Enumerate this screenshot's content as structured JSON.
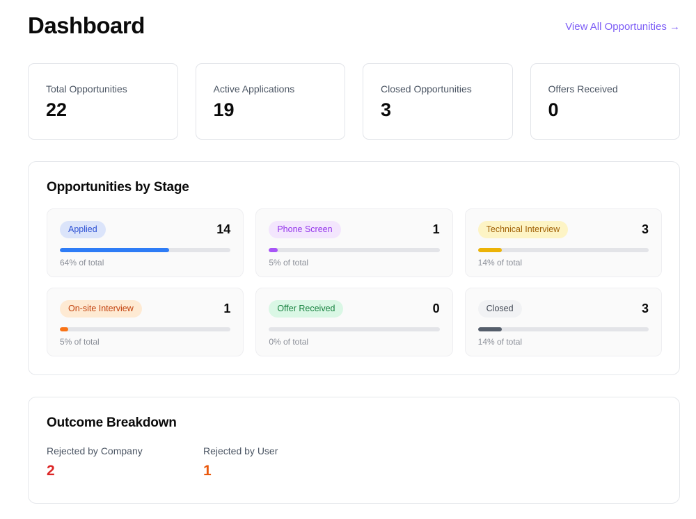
{
  "header": {
    "title": "Dashboard",
    "link_label": "View All Opportunities →",
    "link_color": "#7c5cf6"
  },
  "stats": {
    "items": [
      {
        "label": "Total Opportunities",
        "value": "22"
      },
      {
        "label": "Active Applications",
        "value": "19"
      },
      {
        "label": "Closed Opportunities",
        "value": "3"
      },
      {
        "label": "Offers Received",
        "value": "0"
      }
    ]
  },
  "stages": {
    "title": "Opportunities by Stage",
    "items": [
      {
        "label": "Applied",
        "value": "14",
        "percent": 64,
        "percent_label": "64% of total",
        "badge_bg": "#dbe4fa",
        "badge_text": "#2f52d4",
        "bar_color": "#2e7cf6"
      },
      {
        "label": "Phone Screen",
        "value": "1",
        "percent": 5,
        "percent_label": "5% of total",
        "badge_bg": "#f3e6fd",
        "badge_text": "#9333ea",
        "bar_color": "#a855f7"
      },
      {
        "label": "Technical Interview",
        "value": "3",
        "percent": 14,
        "percent_label": "14% of total",
        "badge_bg": "#fdf4c5",
        "badge_text": "#a16207",
        "bar_color": "#ecb307"
      },
      {
        "label": "On-site Interview",
        "value": "1",
        "percent": 5,
        "percent_label": "5% of total",
        "badge_bg": "#feead3",
        "badge_text": "#c2410c",
        "bar_color": "#f97316"
      },
      {
        "label": "Offer Received",
        "value": "0",
        "percent": 0,
        "percent_label": "0% of total",
        "badge_bg": "#daf7e5",
        "badge_text": "#15803d",
        "bar_color": "#22c55e"
      },
      {
        "label": "Closed",
        "value": "3",
        "percent": 14,
        "percent_label": "14% of total",
        "badge_bg": "#f1f2f4",
        "badge_text": "#3f4652",
        "bar_color": "#555e6b"
      }
    ]
  },
  "outcome": {
    "title": "Outcome Breakdown",
    "items": [
      {
        "label": "Rejected by Company",
        "value": "2",
        "color": "#dc2626"
      },
      {
        "label": "Rejected by User",
        "value": "1",
        "color": "#ea580c"
      }
    ]
  }
}
